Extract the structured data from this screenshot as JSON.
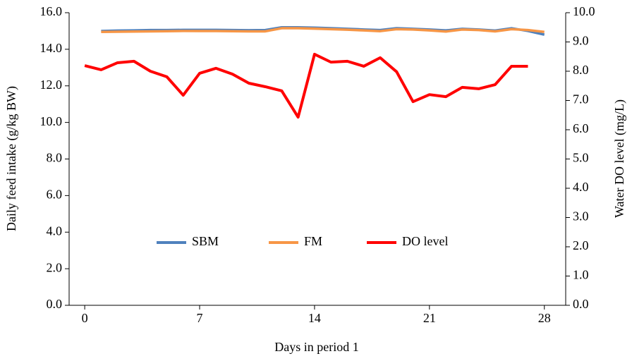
{
  "chart_data": {
    "type": "line",
    "x_label": "Days in period 1",
    "y_label": "Daily feed intake (g/kg BW)",
    "y2_label": "Water DO level (mg/L)",
    "x": [
      0,
      1,
      2,
      3,
      4,
      5,
      6,
      7,
      8,
      9,
      10,
      11,
      12,
      13,
      14,
      15,
      16,
      17,
      18,
      19,
      20,
      21,
      22,
      23,
      24,
      25,
      26,
      27,
      28
    ],
    "xlim": [
      -0.95,
      29.3
    ],
    "xticks": [
      0,
      7,
      14,
      21,
      28
    ],
    "ylim": [
      0,
      16
    ],
    "yticks": [
      {
        "value": 0,
        "label": "0.0"
      },
      {
        "value": 2,
        "label": "2.0"
      },
      {
        "value": 4,
        "label": "4.0"
      },
      {
        "value": 6,
        "label": "6.0"
      },
      {
        "value": 8,
        "label": "8.0"
      },
      {
        "value": 10,
        "label": "10.0"
      },
      {
        "value": 12,
        "label": "12.0"
      },
      {
        "value": 14,
        "label": "14.0"
      },
      {
        "value": 16,
        "label": "16.0"
      }
    ],
    "y2lim": [
      0,
      10
    ],
    "y2ticks": [
      {
        "value": 0,
        "label": "0.0"
      },
      {
        "value": 1,
        "label": "1.0"
      },
      {
        "value": 2,
        "label": "2.0"
      },
      {
        "value": 3,
        "label": "3.0"
      },
      {
        "value": 4,
        "label": "4.0"
      },
      {
        "value": 5,
        "label": "5.0"
      },
      {
        "value": 6,
        "label": "6.0"
      },
      {
        "value": 7,
        "label": "7.0"
      },
      {
        "value": 8,
        "label": "8.0"
      },
      {
        "value": 9,
        "label": "9.0"
      },
      {
        "value": 10,
        "label": "10.0"
      }
    ],
    "grid": false,
    "legend": "lower center",
    "series": [
      {
        "name": "SBM",
        "color": "#4f81bd",
        "values": [
          null,
          15.0,
          15.02,
          15.03,
          15.05,
          15.05,
          15.06,
          15.06,
          15.06,
          15.05,
          15.04,
          15.05,
          15.2,
          15.2,
          15.18,
          15.15,
          15.12,
          15.08,
          15.05,
          15.15,
          15.12,
          15.08,
          15.03,
          15.12,
          15.08,
          15.02,
          15.15,
          15.0,
          14.8
        ]
      },
      {
        "name": "FM",
        "color": "#f79646",
        "values": [
          null,
          14.95,
          14.96,
          14.97,
          14.98,
          14.99,
          15.0,
          15.0,
          15.0,
          14.99,
          14.98,
          14.98,
          15.15,
          15.15,
          15.13,
          15.1,
          15.07,
          15.03,
          14.99,
          15.1,
          15.08,
          15.03,
          14.97,
          15.08,
          15.05,
          14.98,
          15.1,
          15.05,
          14.95
        ]
      },
      {
        "name": "DO level",
        "color": "#ff0000",
        "axis": "y2",
        "values": [
          8.19,
          8.05,
          8.29,
          8.34,
          8.0,
          7.81,
          7.18,
          7.93,
          8.1,
          7.9,
          7.59,
          7.47,
          7.33,
          6.43,
          8.58,
          8.31,
          8.34,
          8.17,
          8.46,
          7.98,
          6.96,
          7.2,
          7.13,
          7.45,
          7.4,
          7.54,
          8.17,
          8.17,
          null
        ]
      }
    ]
  }
}
